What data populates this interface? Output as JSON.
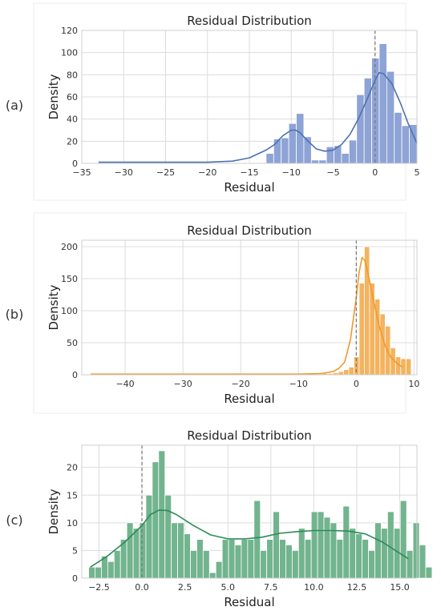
{
  "chart_data": [
    {
      "type": "bar",
      "panel_label": "(a)",
      "title": "Residual Distribution",
      "xlabel": "Residual",
      "ylabel": "Density",
      "xlim": [
        -35,
        5
      ],
      "ylim": [
        0,
        120
      ],
      "xticks": [
        -35,
        -30,
        -25,
        -20,
        -15,
        -10,
        -5,
        0,
        5
      ],
      "xtick_labels": [
        "−35",
        "−30",
        "−25",
        "−20",
        "−15",
        "−10",
        "−5",
        "0",
        "5"
      ],
      "yticks": [
        0,
        20,
        40,
        60,
        80,
        100,
        120
      ],
      "grid": true,
      "color": "#4c72b0",
      "bar_color": "#8ea3d6",
      "reference_line_x": 0,
      "bins": {
        "start": -13,
        "width": 0.9,
        "values": [
          9,
          22,
          23,
          36,
          45,
          24,
          3,
          3,
          15,
          16,
          9,
          21,
          62,
          77,
          95,
          108,
          83,
          46,
          34,
          35
        ]
      },
      "kde": {
        "x": [
          -33,
          -25,
          -20,
          -17,
          -15,
          -13,
          -12,
          -11,
          -10,
          -9.5,
          -9,
          -8,
          -7,
          -6,
          -5,
          -4,
          -3,
          -2,
          -1,
          0,
          0.5,
          1,
          2,
          3,
          4,
          5
        ],
        "y": [
          1,
          1,
          1,
          2,
          5,
          12,
          17,
          25,
          30,
          30,
          28,
          20,
          13,
          11,
          12,
          17,
          26,
          40,
          57,
          75,
          82,
          81,
          72,
          55,
          35,
          18
        ]
      }
    },
    {
      "type": "bar",
      "panel_label": "(b)",
      "title": "Residual Distribution",
      "xlabel": "Residual",
      "ylabel": "Density",
      "xlim": [
        -47.5,
        10.5
      ],
      "ylim": [
        0,
        210
      ],
      "xticks": [
        -40,
        -30,
        -20,
        -10,
        0,
        10
      ],
      "xtick_labels": [
        "−40",
        "−30",
        "−20",
        "−10",
        "0",
        "10"
      ],
      "yticks": [
        0,
        50,
        100,
        150,
        200
      ],
      "grid": true,
      "color": "#ee9a2e",
      "bar_color": "#f4b35e",
      "reference_line_x": 0,
      "bins": {
        "start": -6.7,
        "width": 0.9,
        "values": [
          1,
          2,
          2,
          3,
          5,
          8,
          12,
          28,
          143,
          200,
          143,
          118,
          95,
          76,
          42,
          28,
          25,
          25
        ]
      },
      "kde": {
        "x": [
          -46,
          -30,
          -10,
          -6,
          -4,
          -3,
          -2,
          -1,
          0,
          0.5,
          1,
          1.5,
          2,
          3,
          4,
          5,
          6,
          7,
          8
        ],
        "y": [
          1,
          1,
          1,
          2,
          5,
          10,
          20,
          55,
          120,
          160,
          183,
          178,
          160,
          115,
          75,
          45,
          27,
          18,
          12
        ]
      }
    },
    {
      "type": "bar",
      "panel_label": "(c)",
      "title": "Residual Distribution",
      "xlabel": "Residual",
      "ylabel": "Density",
      "xlim": [
        -3.5,
        16
      ],
      "ylim": [
        0,
        24
      ],
      "xticks": [
        -2.5,
        0,
        2.5,
        5,
        7.5,
        10,
        12.5,
        15
      ],
      "xtick_labels": [
        "−2.5",
        "0.0",
        "2.5",
        "5.0",
        "7.5",
        "10.0",
        "12.5",
        "15.0"
      ],
      "yticks": [
        0,
        5,
        10,
        15,
        20
      ],
      "grid": true,
      "color": "#2e8b57",
      "bar_color": "#72b48e",
      "reference_line_x": 0,
      "bins": {
        "start": -3.1,
        "width": 0.37,
        "values": [
          2,
          2,
          4,
          3,
          5,
          7,
          10,
          9,
          10,
          15,
          21,
          23,
          15,
          10,
          10,
          8,
          5,
          7,
          5,
          1,
          3,
          7,
          7,
          6,
          7,
          7,
          14,
          5,
          7,
          12,
          7,
          6,
          5,
          9,
          7,
          12,
          12,
          11,
          10,
          7,
          13,
          9,
          8,
          7,
          5,
          10,
          9,
          12,
          9,
          14,
          5,
          10,
          6,
          2
        ]
      },
      "kde": {
        "x": [
          -3,
          -2,
          -1,
          0,
          0.5,
          1,
          1.5,
          2,
          3,
          4,
          5,
          6,
          7,
          8,
          9,
          10,
          11,
          12,
          13,
          14,
          15,
          15.5
        ],
        "y": [
          2,
          4,
          6.5,
          9.5,
          11.5,
          12.3,
          12.2,
          11.5,
          9.5,
          7.8,
          7.1,
          7.1,
          7.4,
          8.1,
          8.4,
          8.6,
          8.6,
          8.5,
          8,
          6.5,
          4.5,
          3.5
        ]
      }
    }
  ]
}
